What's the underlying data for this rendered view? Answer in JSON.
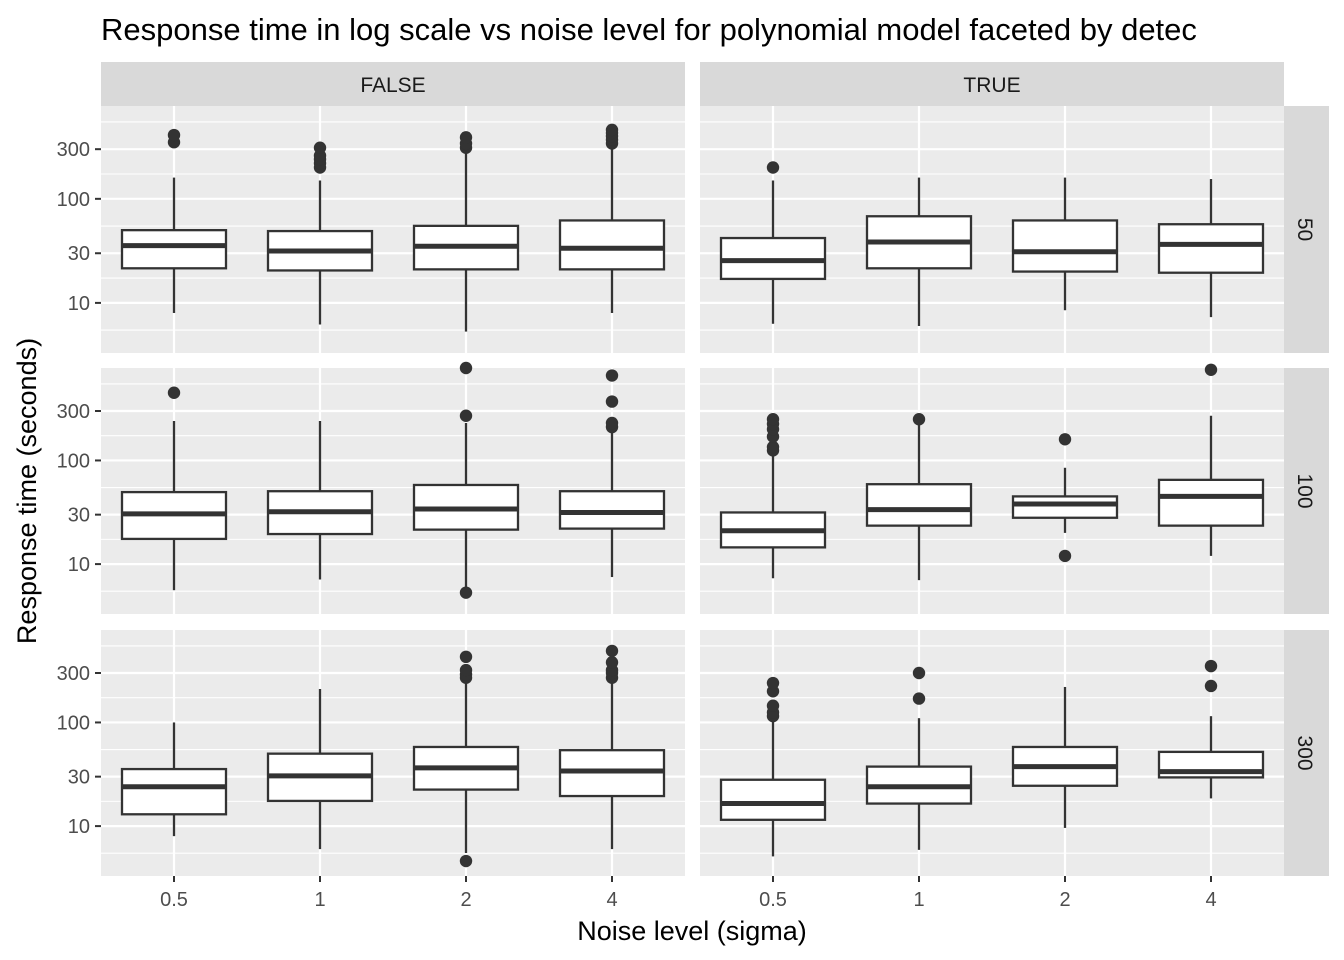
{
  "chart_data": {
    "type": "boxplot",
    "title": "Response time in log scale vs noise level for polynomial model faceted by detec",
    "xlabel": "Noise level (sigma)",
    "ylabel": "Response time (seconds)",
    "y_scale": "log10",
    "y_ticks": [
      10,
      30,
      100,
      300
    ],
    "y_tick_labels": [
      "10",
      "30",
      "100",
      "300"
    ],
    "ylim": [
      3.3,
      780
    ],
    "categories": [
      "0.5",
      "1",
      "2",
      "4"
    ],
    "col_facets": [
      "FALSE",
      "TRUE"
    ],
    "row_facets": [
      "50",
      "100",
      "300"
    ],
    "colors": {
      "panel_bg": "#ebebeb",
      "strip_bg": "#d9d9d9",
      "grid": "#ffffff",
      "box_fill": "#ffffff",
      "box_line": "#333333",
      "text": "#4d4d4d",
      "title": "#000000"
    },
    "panels": [
      {
        "col": "FALSE",
        "row": "50",
        "boxes": [
          {
            "x": "0.5",
            "whisker_low": 8.0,
            "q1": 21.5,
            "median": 35.5,
            "q3": 50.0,
            "whisker_high": 160,
            "outliers": [
              350,
              410
            ]
          },
          {
            "x": "1",
            "whisker_low": 6.2,
            "q1": 20.5,
            "median": 31.5,
            "q3": 49.0,
            "whisker_high": 150,
            "outliers": [
              200,
              220,
              240,
              260,
              310
            ]
          },
          {
            "x": "2",
            "whisker_low": 5.3,
            "q1": 21.0,
            "median": 35.0,
            "q3": 55.0,
            "whisker_high": 280,
            "outliers": [
              310,
              340,
              390
            ]
          },
          {
            "x": "4",
            "whisker_low": 8.0,
            "q1": 21.0,
            "median": 33.5,
            "q3": 62.0,
            "whisker_high": 300,
            "outliers": [
              340,
              370,
              400,
              430,
              460
            ]
          }
        ]
      },
      {
        "col": "TRUE",
        "row": "50",
        "boxes": [
          {
            "x": "0.5",
            "whisker_low": 6.3,
            "q1": 17.0,
            "median": 25.5,
            "q3": 42.0,
            "whisker_high": 150,
            "outliers": [
              200
            ]
          },
          {
            "x": "1",
            "whisker_low": 6.0,
            "q1": 21.5,
            "median": 38.5,
            "q3": 68.0,
            "whisker_high": 160,
            "outliers": []
          },
          {
            "x": "2",
            "whisker_low": 8.5,
            "q1": 20.0,
            "median": 31.0,
            "q3": 62.0,
            "whisker_high": 160,
            "outliers": []
          },
          {
            "x": "4",
            "whisker_low": 7.3,
            "q1": 19.5,
            "median": 36.5,
            "q3": 57.0,
            "whisker_high": 155,
            "outliers": []
          }
        ]
      },
      {
        "col": "FALSE",
        "row": "100",
        "boxes": [
          {
            "x": "0.5",
            "whisker_low": 5.6,
            "q1": 17.5,
            "median": 30.5,
            "q3": 49.5,
            "whisker_high": 240,
            "outliers": [
              450
            ]
          },
          {
            "x": "1",
            "whisker_low": 7.1,
            "q1": 19.5,
            "median": 32.0,
            "q3": 50.5,
            "whisker_high": 240,
            "outliers": []
          },
          {
            "x": "2",
            "whisker_low": 5.2,
            "q1": 21.5,
            "median": 34.0,
            "q3": 58.0,
            "whisker_high": 230,
            "outliers": [
              5.3,
              270,
              780
            ]
          },
          {
            "x": "4",
            "whisker_low": 7.5,
            "q1": 22.0,
            "median": 31.5,
            "q3": 50.5,
            "whisker_high": 200,
            "outliers": [
              210,
              230,
              370,
              660
            ]
          }
        ]
      },
      {
        "col": "TRUE",
        "row": "100",
        "boxes": [
          {
            "x": "0.5",
            "whisker_low": 7.3,
            "q1": 14.5,
            "median": 21.0,
            "q3": 31.5,
            "whisker_high": 130,
            "outliers": [
              125,
              135,
              170,
              200,
              225,
              250
            ]
          },
          {
            "x": "1",
            "whisker_low": 7.0,
            "q1": 23.5,
            "median": 33.5,
            "q3": 59.0,
            "whisker_high": 250,
            "outliers": [
              250
            ]
          },
          {
            "x": "2",
            "whisker_low": 20.0,
            "q1": 28.0,
            "median": 38.0,
            "q3": 45.0,
            "whisker_high": 85,
            "outliers": [
              12.0,
              160
            ]
          },
          {
            "x": "4",
            "whisker_low": 12.0,
            "q1": 23.5,
            "median": 45.0,
            "q3": 65.0,
            "whisker_high": 270,
            "outliers": [
              750
            ]
          }
        ]
      },
      {
        "col": "FALSE",
        "row": "300",
        "boxes": [
          {
            "x": "0.5",
            "whisker_low": 8.0,
            "q1": 13.0,
            "median": 24.0,
            "q3": 35.5,
            "whisker_high": 100,
            "outliers": []
          },
          {
            "x": "1",
            "whisker_low": 6.0,
            "q1": 17.5,
            "median": 30.5,
            "q3": 50.0,
            "whisker_high": 210,
            "outliers": []
          },
          {
            "x": "2",
            "whisker_low": 5.5,
            "q1": 22.5,
            "median": 36.5,
            "q3": 58.0,
            "whisker_high": 240,
            "outliers": [
              4.6,
              270,
              290,
              320,
              430
            ]
          },
          {
            "x": "4",
            "whisker_low": 6.0,
            "q1": 19.5,
            "median": 34.0,
            "q3": 54.0,
            "whisker_high": 240,
            "outliers": [
              270,
              300,
              320,
              380,
              490
            ]
          }
        ]
      },
      {
        "col": "TRUE",
        "row": "300",
        "boxes": [
          {
            "x": "0.5",
            "whisker_low": 5.1,
            "q1": 11.5,
            "median": 16.5,
            "q3": 28.0,
            "whisker_high": 110,
            "outliers": [
              115,
              125,
              145,
              200,
              240
            ]
          },
          {
            "x": "1",
            "whisker_low": 5.9,
            "q1": 16.5,
            "median": 24.0,
            "q3": 37.5,
            "whisker_high": 110,
            "outliers": [
              170,
              300
            ]
          },
          {
            "x": "2",
            "whisker_low": 9.6,
            "q1": 24.5,
            "median": 37.5,
            "q3": 58.0,
            "whisker_high": 220,
            "outliers": []
          },
          {
            "x": "4",
            "whisker_low": 18.5,
            "q1": 29.5,
            "median": 33.5,
            "q3": 52.0,
            "whisker_high": 115,
            "outliers": [
              225,
              350
            ]
          }
        ]
      }
    ]
  }
}
